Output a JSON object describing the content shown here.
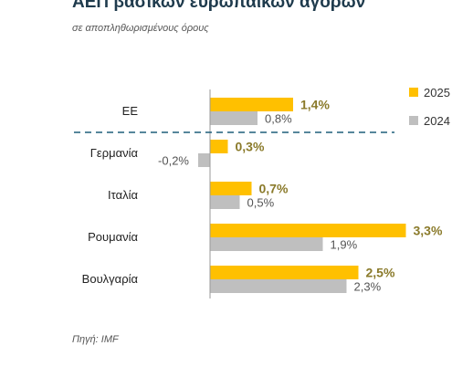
{
  "header": {
    "title": "ΑΕΠ βασικών ευρωπαϊκών αγορών",
    "subtitle": "σε αποπληθωρισμένους όρους"
  },
  "footer": {
    "source": "Πηγή: IMF"
  },
  "colors": {
    "series_2025": "#ffc000",
    "series_2024": "#bfbfbf",
    "divider": "#1f5f7a"
  },
  "chart_data": {
    "type": "bar",
    "orientation": "horizontal",
    "categories": [
      "ΕΕ",
      "Γερμανία",
      "Ιταλία",
      "Ρουμανία",
      "Βουλγαρία"
    ],
    "series": [
      {
        "name": "2025",
        "values": [
          1.4,
          0.3,
          0.7,
          3.3,
          2.5
        ],
        "labels": [
          "1,4%",
          "0,3%",
          "0,7%",
          "3,3%",
          "2,5%"
        ]
      },
      {
        "name": "2024",
        "values": [
          0.8,
          -0.2,
          0.5,
          1.9,
          2.3
        ],
        "labels": [
          "0,8%",
          "-0,2%",
          "0,5%",
          "1,9%",
          "2,3%"
        ]
      }
    ],
    "unit": "%",
    "legend": "top-right",
    "grid": false
  }
}
